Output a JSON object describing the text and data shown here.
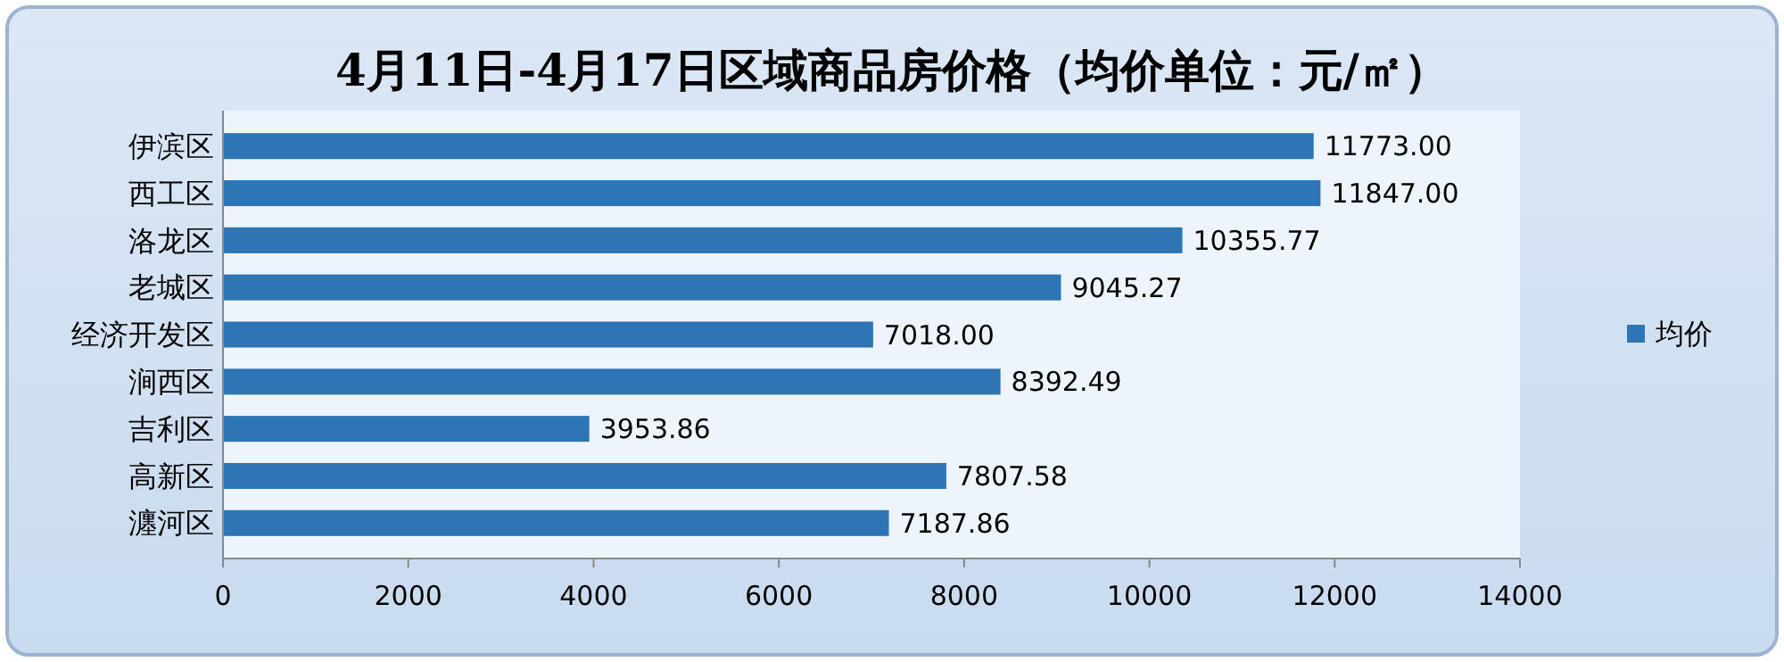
{
  "chart_data": {
    "type": "bar",
    "orientation": "horizontal",
    "title": "4月11日-4月17日区域商品房价格（均价单位：元/㎡）",
    "categories": [
      "伊滨区",
      "西工区",
      "洛龙区",
      "老城区",
      "经济开发区",
      "涧西区",
      "吉利区",
      "高新区",
      "瀍河区"
    ],
    "series": [
      {
        "name": "均价",
        "color": "#2e75b6",
        "values": [
          11773.0,
          11847.0,
          10355.77,
          9045.27,
          7018.0,
          8392.49,
          3953.86,
          7807.58,
          7187.86
        ],
        "value_labels": [
          "11773.00",
          "11847.00",
          "10355.77",
          "9045.27",
          "7018.00",
          "8392.49",
          "3953.86",
          "7807.58",
          "7187.86"
        ]
      }
    ],
    "xlim": [
      0,
      14000
    ],
    "xticks": [
      0,
      2000,
      4000,
      6000,
      8000,
      10000,
      12000,
      14000
    ],
    "legend": "right"
  }
}
